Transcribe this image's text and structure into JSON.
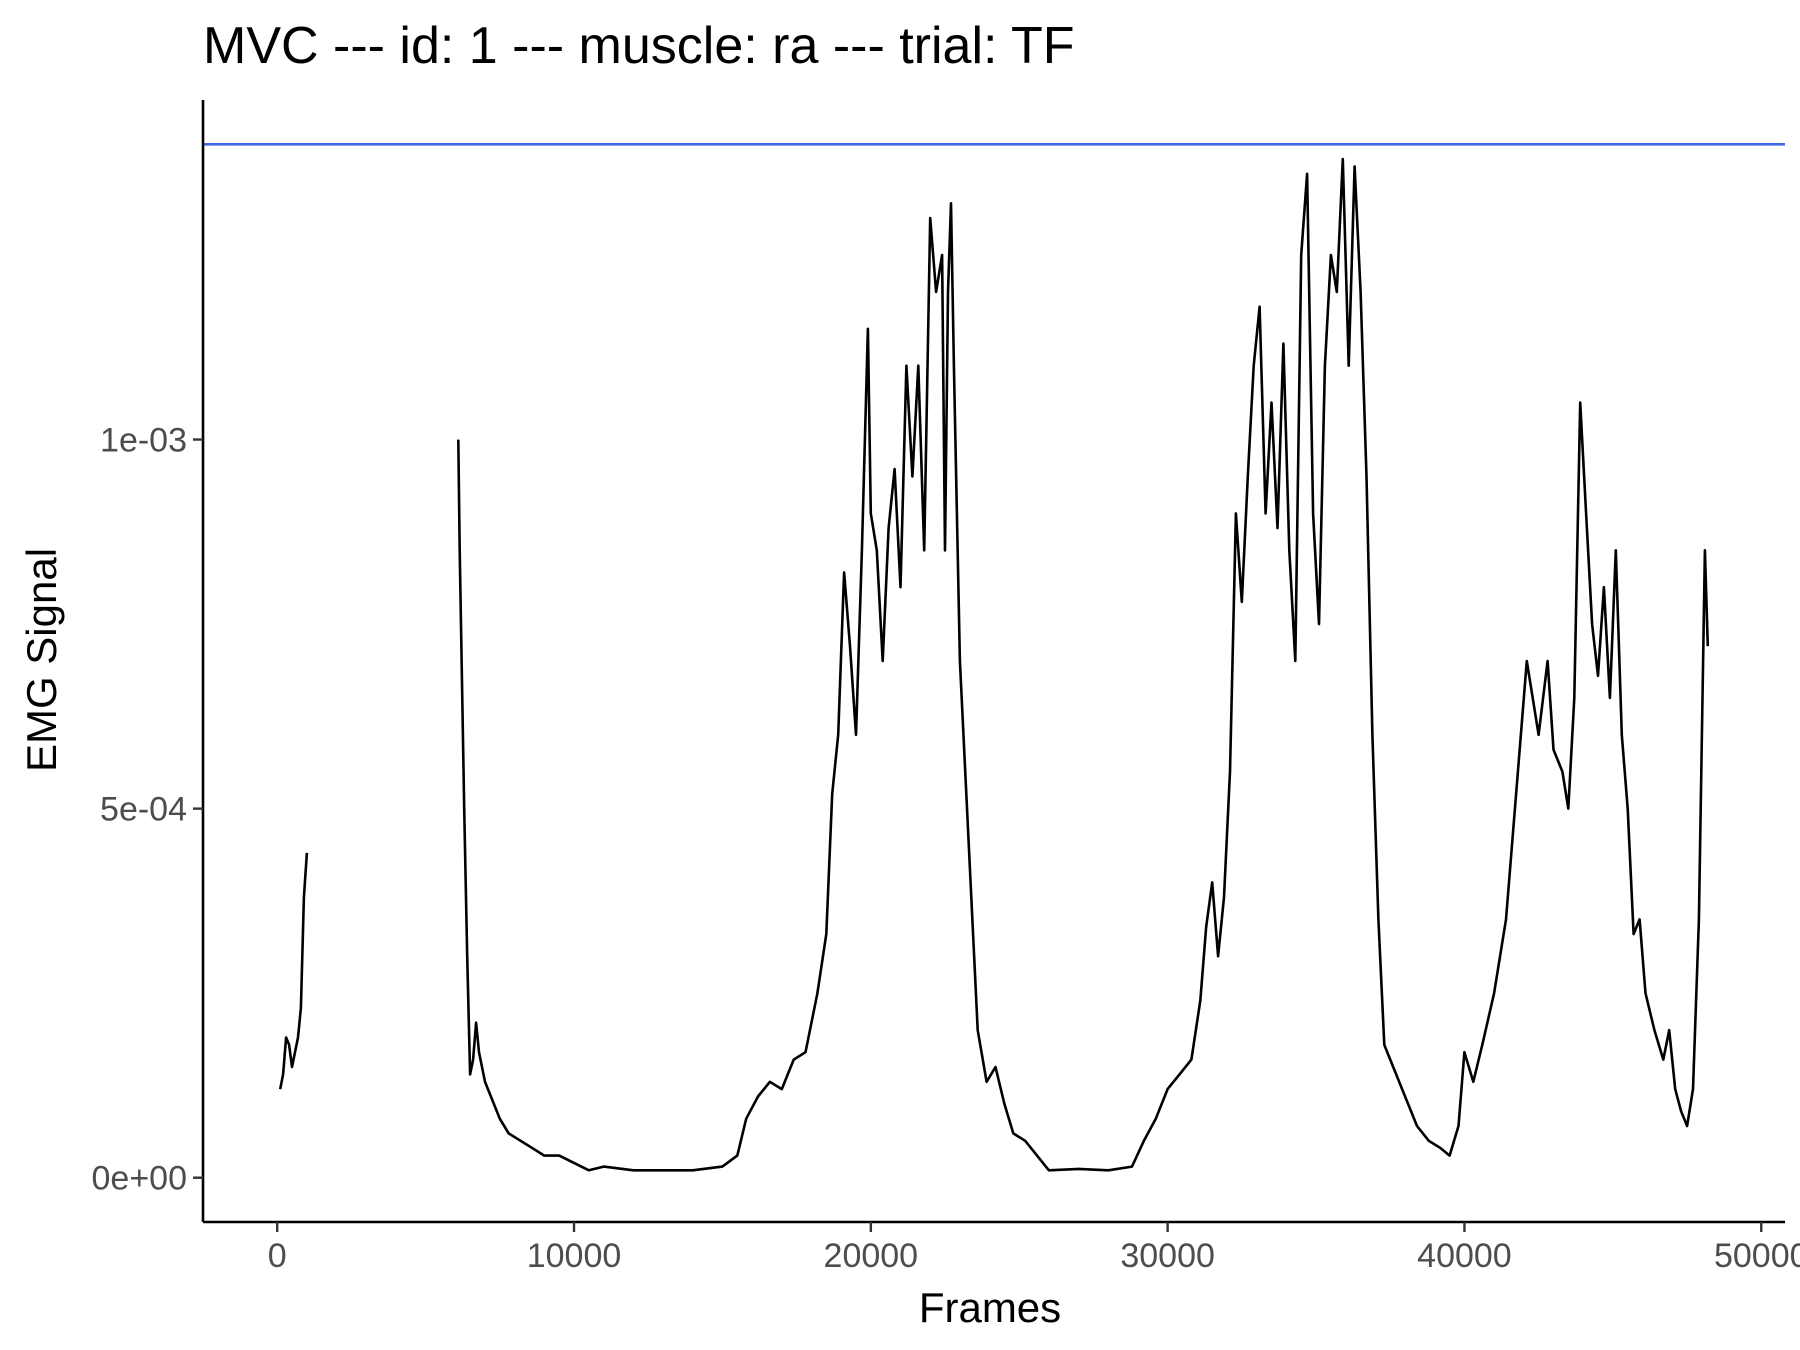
{
  "chart_data": {
    "type": "line",
    "title": "MVC --- id: 1 --- muscle: ra --- trial: TF",
    "xlabel": "Frames",
    "ylabel": "EMG Signal",
    "xlim": [
      -2500,
      50800
    ],
    "ylim": [
      -6e-05,
      0.00146
    ],
    "x_ticks": [
      0,
      10000,
      20000,
      30000,
      40000,
      50000
    ],
    "x_tick_labels": [
      "0",
      "10000",
      "20000",
      "30000",
      "40000",
      "50000"
    ],
    "y_ticks": [
      0,
      0.0005,
      0.001
    ],
    "y_tick_labels": [
      "0e+00",
      "5e-04",
      "1e-03"
    ],
    "grid": false,
    "legend": "none",
    "colors": {
      "signal": "#000000",
      "reference": "#4169e1",
      "axis": "#000000",
      "tick_text": "#4d4d4d"
    },
    "hline": {
      "y": 0.0014
    },
    "series": [
      {
        "segments": [
          [
            [
              100,
              0.00012
            ],
            [
              200,
              0.00014
            ],
            [
              300,
              0.00019
            ],
            [
              400,
              0.00018
            ],
            [
              500,
              0.00015
            ],
            [
              600,
              0.00017
            ],
            [
              700,
              0.00019
            ],
            [
              800,
              0.00023
            ],
            [
              900,
              0.00038
            ],
            [
              1000,
              0.00044
            ]
          ],
          [
            [
              6100,
              0.001
            ],
            [
              6150,
              0.00085
            ],
            [
              6300,
              0.0005
            ],
            [
              6400,
              0.0003
            ],
            [
              6500,
              0.00014
            ],
            [
              6600,
              0.00016
            ],
            [
              6700,
              0.00021
            ],
            [
              6800,
              0.00017
            ],
            [
              7000,
              0.00013
            ],
            [
              7200,
              0.00011
            ],
            [
              7500,
              8e-05
            ],
            [
              7800,
              6e-05
            ],
            [
              8200,
              5e-05
            ],
            [
              8600,
              4e-05
            ],
            [
              9000,
              3e-05
            ],
            [
              9500,
              3e-05
            ],
            [
              10000,
              2e-05
            ],
            [
              10500,
              1e-05
            ],
            [
              11000,
              1.5e-05
            ],
            [
              12000,
              1e-05
            ],
            [
              13000,
              1e-05
            ],
            [
              14000,
              1e-05
            ],
            [
              15000,
              1.5e-05
            ],
            [
              15500,
              3e-05
            ],
            [
              15800,
              8e-05
            ],
            [
              16200,
              0.00011
            ],
            [
              16600,
              0.00013
            ],
            [
              17000,
              0.00012
            ],
            [
              17400,
              0.00016
            ],
            [
              17800,
              0.00017
            ],
            [
              18200,
              0.00025
            ],
            [
              18500,
              0.00033
            ],
            [
              18700,
              0.00052
            ],
            [
              18900,
              0.0006
            ],
            [
              19100,
              0.00082
            ],
            [
              19300,
              0.00072
            ],
            [
              19500,
              0.0006
            ],
            [
              19700,
              0.00085
            ],
            [
              19900,
              0.00115
            ],
            [
              20000,
              0.0009
            ],
            [
              20200,
              0.00085
            ],
            [
              20400,
              0.0007
            ],
            [
              20600,
              0.00088
            ],
            [
              20800,
              0.00096
            ],
            [
              21000,
              0.0008
            ],
            [
              21200,
              0.0011
            ],
            [
              21400,
              0.00095
            ],
            [
              21600,
              0.0011
            ],
            [
              21800,
              0.00085
            ],
            [
              22000,
              0.0013
            ],
            [
              22200,
              0.0012
            ],
            [
              22400,
              0.00125
            ],
            [
              22500,
              0.00085
            ],
            [
              22600,
              0.0012
            ],
            [
              22700,
              0.00132
            ],
            [
              22800,
              0.0011
            ],
            [
              23000,
              0.0007
            ],
            [
              23300,
              0.00045
            ],
            [
              23600,
              0.0002
            ],
            [
              23900,
              0.00013
            ],
            [
              24200,
              0.00015
            ],
            [
              24500,
              0.0001
            ],
            [
              24800,
              6e-05
            ],
            [
              25200,
              5e-05
            ],
            [
              25600,
              3e-05
            ],
            [
              26000,
              1e-05
            ],
            [
              27000,
              1.2e-05
            ],
            [
              28000,
              1e-05
            ],
            [
              28800,
              1.5e-05
            ],
            [
              29200,
              5e-05
            ],
            [
              29600,
              8e-05
            ],
            [
              30000,
              0.00012
            ],
            [
              30400,
              0.00014
            ],
            [
              30800,
              0.00016
            ],
            [
              31100,
              0.00024
            ],
            [
              31300,
              0.00034
            ],
            [
              31500,
              0.0004
            ],
            [
              31700,
              0.0003
            ],
            [
              31900,
              0.00038
            ],
            [
              32100,
              0.00055
            ],
            [
              32300,
              0.0009
            ],
            [
              32500,
              0.00078
            ],
            [
              32700,
              0.00095
            ],
            [
              32900,
              0.0011
            ],
            [
              33100,
              0.00118
            ],
            [
              33300,
              0.0009
            ],
            [
              33500,
              0.00105
            ],
            [
              33700,
              0.00088
            ],
            [
              33900,
              0.00113
            ],
            [
              34100,
              0.00085
            ],
            [
              34300,
              0.0007
            ],
            [
              34500,
              0.00125
            ],
            [
              34700,
              0.00136
            ],
            [
              34900,
              0.0009
            ],
            [
              35100,
              0.00075
            ],
            [
              35300,
              0.0011
            ],
            [
              35500,
              0.00125
            ],
            [
              35700,
              0.0012
            ],
            [
              35900,
              0.00138
            ],
            [
              36100,
              0.0011
            ],
            [
              36300,
              0.00137
            ],
            [
              36500,
              0.0012
            ],
            [
              36700,
              0.00095
            ],
            [
              36900,
              0.0006
            ],
            [
              37100,
              0.00035
            ],
            [
              37300,
              0.00018
            ],
            [
              37600,
              0.00015
            ],
            [
              38000,
              0.00011
            ],
            [
              38400,
              7e-05
            ],
            [
              38800,
              5e-05
            ],
            [
              39200,
              4e-05
            ],
            [
              39500,
              3e-05
            ],
            [
              39800,
              7e-05
            ],
            [
              40000,
              0.00017
            ],
            [
              40300,
              0.00013
            ],
            [
              40600,
              0.00018
            ],
            [
              41000,
              0.00025
            ],
            [
              41400,
              0.00035
            ],
            [
              41800,
              0.00055
            ],
            [
              42100,
              0.0007
            ],
            [
              42300,
              0.00065
            ],
            [
              42500,
              0.0006
            ],
            [
              42800,
              0.0007
            ],
            [
              43000,
              0.00058
            ],
            [
              43300,
              0.00055
            ],
            [
              43500,
              0.0005
            ],
            [
              43700,
              0.00065
            ],
            [
              43900,
              0.00105
            ],
            [
              44100,
              0.0009
            ],
            [
              44300,
              0.00075
            ],
            [
              44500,
              0.00068
            ],
            [
              44700,
              0.0008
            ],
            [
              44900,
              0.00065
            ],
            [
              45100,
              0.00085
            ],
            [
              45300,
              0.0006
            ],
            [
              45500,
              0.0005
            ],
            [
              45700,
              0.00033
            ],
            [
              45900,
              0.00035
            ],
            [
              46100,
              0.00025
            ],
            [
              46400,
              0.0002
            ],
            [
              46700,
              0.00016
            ],
            [
              46900,
              0.0002
            ],
            [
              47100,
              0.00012
            ],
            [
              47300,
              9e-05
            ],
            [
              47500,
              7e-05
            ],
            [
              47700,
              0.00012
            ],
            [
              47900,
              0.00035
            ],
            [
              48100,
              0.00085
            ],
            [
              48200,
              0.00072
            ]
          ]
        ]
      }
    ]
  }
}
